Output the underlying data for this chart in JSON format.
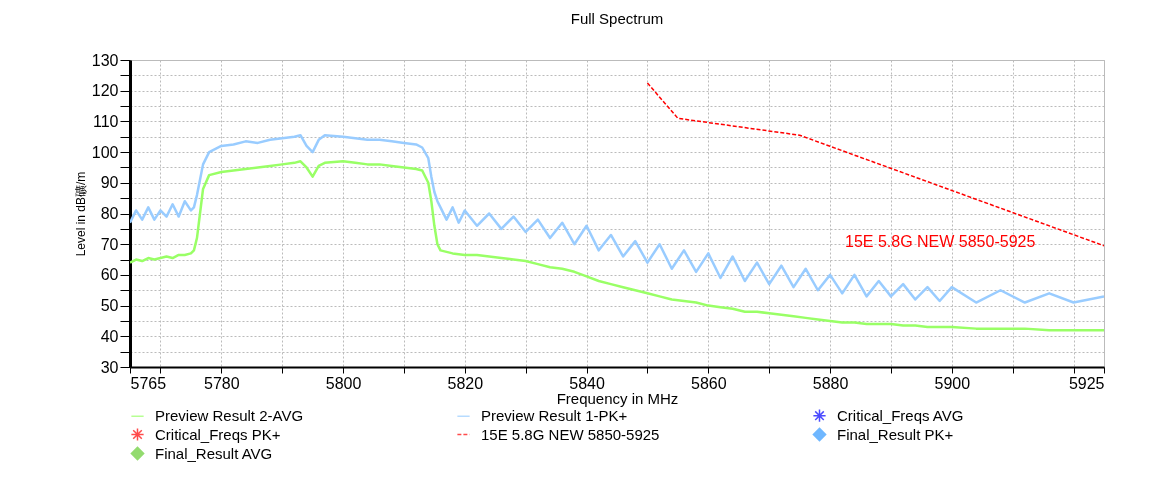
{
  "chart_data": {
    "type": "line",
    "title": "Full Spectrum",
    "xlabel": "Frequency in MHz",
    "ylabel": "Level in dB礦/m",
    "xlim": [
      5765,
      5925
    ],
    "ylim": [
      30,
      130
    ],
    "xticks": [
      5765,
      {
        "value": 5770,
        "label": null
      },
      5780,
      {
        "value": 5790,
        "label": null
      },
      5800,
      {
        "value": 5810,
        "label": null
      },
      5820,
      {
        "value": 5830,
        "label": null
      },
      5840,
      {
        "value": 5850,
        "label": null
      },
      5860,
      {
        "value": 5870,
        "label": null
      },
      5880,
      {
        "value": 5890,
        "label": null
      },
      5900,
      {
        "value": 5910,
        "label": null
      },
      {
        "value": 5920,
        "label": null
      },
      5925
    ],
    "yticks": [
      30,
      {
        "value": 35,
        "label": null
      },
      40,
      {
        "value": 45,
        "label": null
      },
      50,
      {
        "value": 55,
        "label": null
      },
      60,
      {
        "value": 65,
        "label": null
      },
      70,
      {
        "value": 75,
        "label": null
      },
      80,
      {
        "value": 85,
        "label": null
      },
      90,
      {
        "value": 95,
        "label": null
      },
      100,
      {
        "value": 105,
        "label": null
      },
      110,
      {
        "value": 115,
        "label": null
      },
      120,
      {
        "value": 125,
        "label": null
      },
      130
    ],
    "grid": true,
    "legend": "bottom",
    "annotations": [
      "15E 5.8G NEW 5850-5925"
    ],
    "series": [
      {
        "name": "Preview Result 2-AVG",
        "color": "#99ff66",
        "x": [
          5765,
          5766,
          5767,
          5768,
          5769,
          5770,
          5771,
          5772,
          5773,
          5774,
          5775,
          5775.5,
          5776,
          5776.5,
          5777,
          5778,
          5780,
          5782,
          5784,
          5786,
          5788,
          5790,
          5792,
          5793,
          5794,
          5795,
          5796,
          5797,
          5800,
          5802,
          5804,
          5806,
          5808,
          5810,
          5812,
          5813,
          5814,
          5814.5,
          5815,
          5815.5,
          5816,
          5818,
          5820,
          5822,
          5824,
          5826,
          5828,
          5830,
          5832,
          5834,
          5836,
          5838,
          5840,
          5842,
          5844,
          5846,
          5848,
          5850,
          5852,
          5854,
          5856,
          5858,
          5860,
          5862,
          5864,
          5866,
          5868,
          5870,
          5872,
          5874,
          5876,
          5878,
          5880,
          5882,
          5884,
          5886,
          5888,
          5890,
          5892,
          5894,
          5896,
          5898,
          5900,
          5904,
          5908,
          5912,
          5916,
          5920,
          5925
        ],
        "values": [
          64,
          65,
          64.5,
          65.5,
          65,
          65.5,
          66,
          65.5,
          66.5,
          66.5,
          67,
          68,
          72,
          80,
          88,
          92.5,
          93.5,
          94,
          94.5,
          95,
          95.5,
          96,
          96.5,
          97,
          95,
          92,
          95.5,
          96.5,
          97,
          96.5,
          96,
          96,
          95.5,
          95,
          94.5,
          94,
          90,
          84,
          76,
          70,
          68,
          67,
          66.5,
          66.5,
          66,
          65.5,
          65,
          64.5,
          63.5,
          62.5,
          62,
          61,
          59.5,
          58,
          57,
          56,
          55,
          54,
          53,
          52,
          51.5,
          51,
          50,
          49.5,
          49,
          48,
          48,
          47.5,
          47,
          46.5,
          46,
          45.5,
          45,
          44.5,
          44.5,
          44,
          44,
          44,
          43.5,
          43.5,
          43,
          43,
          43,
          42.5,
          42.5,
          42.5,
          42,
          42,
          42
        ]
      },
      {
        "name": "Preview Result 1-PK+",
        "color": "#99ccff",
        "x": [
          5765,
          5766,
          5767,
          5768,
          5769,
          5770,
          5771,
          5772,
          5773,
          5774,
          5775,
          5775.5,
          5776,
          5776.5,
          5777,
          5778,
          5780,
          5782,
          5784,
          5786,
          5788,
          5790,
          5792,
          5793,
          5794,
          5795,
          5796,
          5797,
          5800,
          5802,
          5804,
          5806,
          5808,
          5810,
          5812,
          5813,
          5814,
          5814.5,
          5815,
          5815.5,
          5816,
          5817,
          5818,
          5819,
          5820,
          5822,
          5824,
          5826,
          5828,
          5830,
          5832,
          5834,
          5836,
          5838,
          5840,
          5842,
          5844,
          5846,
          5848,
          5850,
          5852,
          5854,
          5856,
          5858,
          5860,
          5862,
          5864,
          5866,
          5868,
          5870,
          5872,
          5874,
          5876,
          5878,
          5880,
          5882,
          5884,
          5886,
          5888,
          5890,
          5892,
          5894,
          5896,
          5898,
          5900,
          5904,
          5908,
          5912,
          5916,
          5920,
          5925
        ],
        "values": [
          77,
          81,
          78,
          82,
          78,
          81,
          79,
          83,
          79,
          84,
          81,
          82,
          86,
          91,
          96,
          100,
          102,
          102.5,
          103.5,
          103,
          104,
          104.5,
          105,
          105.5,
          102,
          100,
          104,
          105.5,
          105,
          104.5,
          104,
          104,
          103.5,
          103,
          102.5,
          101.5,
          98,
          92,
          87,
          84,
          82,
          78,
          82,
          77,
          81,
          76,
          80,
          75,
          79,
          74,
          78,
          72,
          77,
          70,
          76,
          68,
          73,
          66,
          71,
          64,
          70,
          62,
          68,
          61,
          67,
          59,
          66,
          58,
          64,
          57,
          63,
          56,
          62,
          55,
          60,
          54,
          60,
          53,
          58,
          53,
          57,
          52,
          56,
          51.5,
          56,
          51,
          55,
          51,
          54,
          51,
          53
        ]
      },
      {
        "name": "Critical_Freqs AVG",
        "type": "scatter",
        "color": "#0000ff",
        "marker": "star"
      },
      {
        "name": "Critical_Freqs PK+",
        "type": "scatter",
        "color": "#ff0000",
        "marker": "star"
      },
      {
        "name": "15E 5.8G NEW 5850-5925",
        "color": "#ff0000",
        "line_style": "dashed",
        "x": [
          5850,
          5855,
          5875,
          5925
        ],
        "values": [
          122.5,
          111,
          105.5,
          69.5
        ]
      },
      {
        "name": "Final_Result PK+",
        "type": "scatter",
        "color": "#3399ff",
        "marker": "diamond"
      },
      {
        "name": "Final_Result AVG",
        "type": "scatter",
        "color": "#66cc33",
        "marker": "diamond"
      }
    ]
  }
}
